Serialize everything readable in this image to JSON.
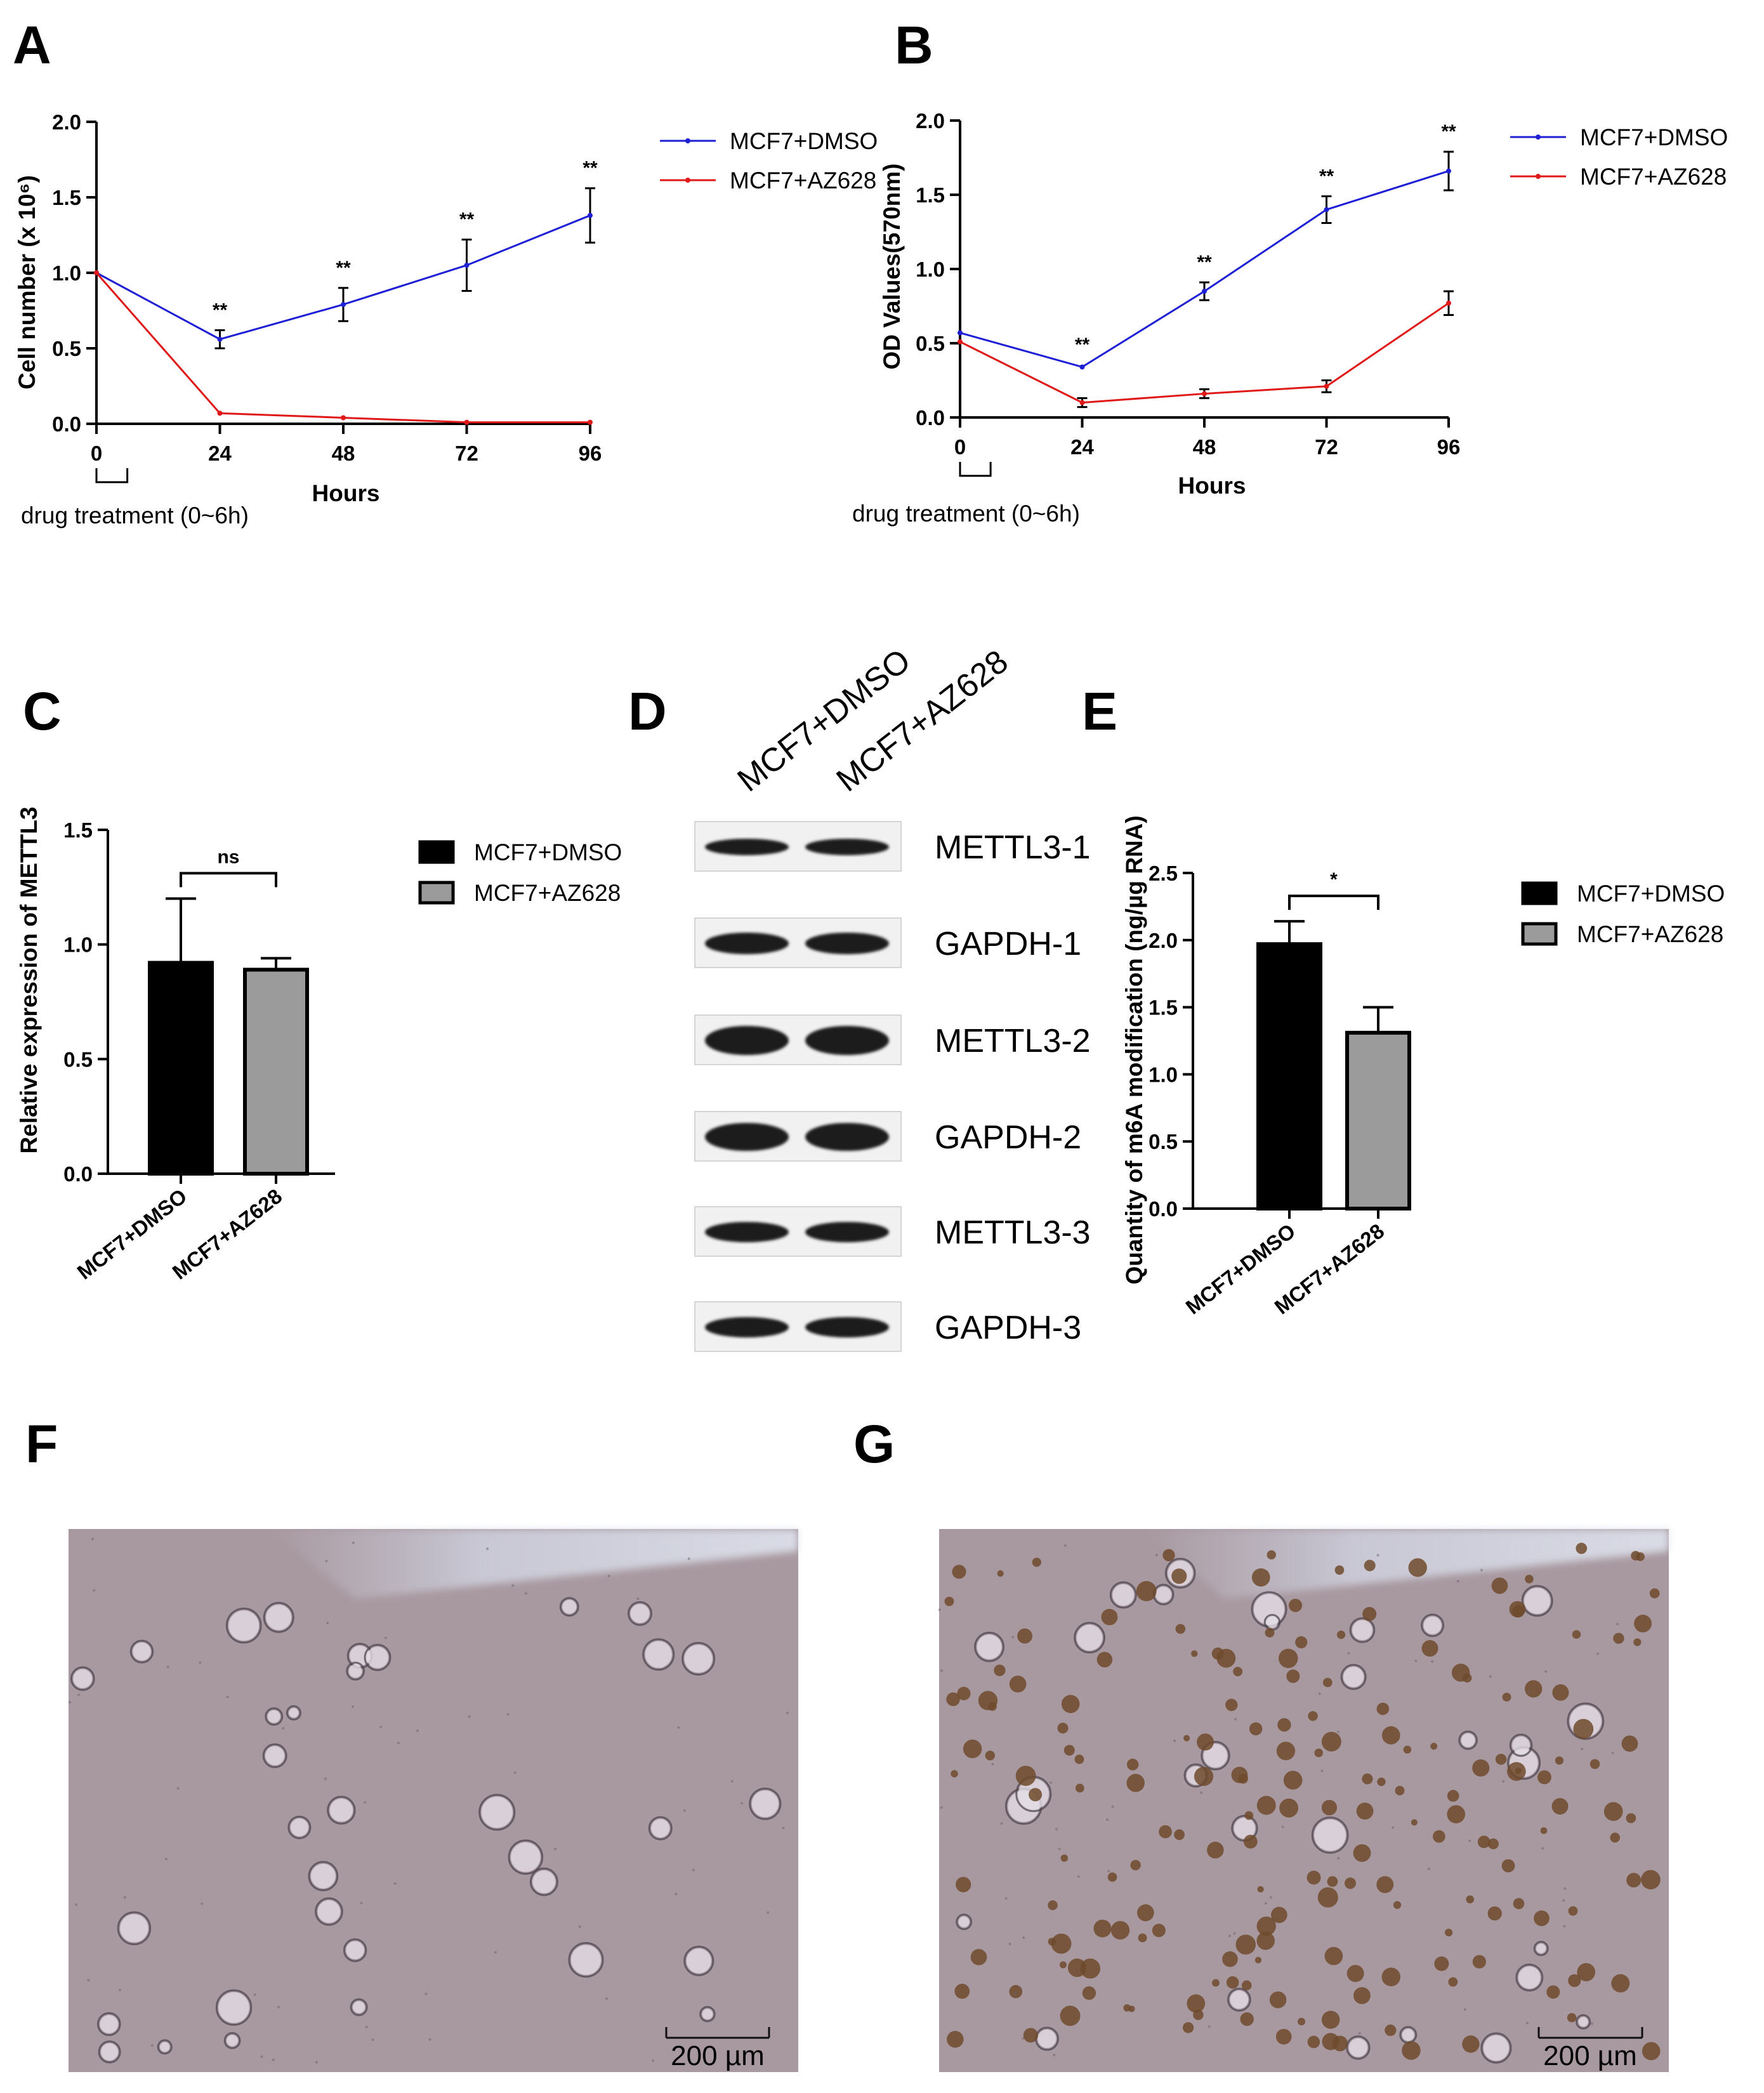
{
  "panels": {
    "A": "A",
    "B": "B",
    "C": "C",
    "D": "D",
    "E": "E",
    "F": "F",
    "G": "G"
  },
  "colors": {
    "dmso_line": "#1f1fd6",
    "az628_line": "#e01818",
    "dmso_bar": "#000000",
    "az628_bar": "#9b9b9b",
    "micrograph_bg": "#a8989f"
  },
  "drug_treatment_label": "drug treatment (0~6h)",
  "chart_data": [
    {
      "id": "A",
      "type": "line",
      "xlabel": "Hours",
      "ylabel": "Cell number (x 10⁶)",
      "x": [
        0,
        24,
        48,
        72,
        96
      ],
      "xticks": [
        "0",
        "24",
        "48",
        "72",
        "96"
      ],
      "yticks": [
        "0.0",
        "0.5",
        "1.0",
        "1.5",
        "2.0"
      ],
      "ylim": [
        0,
        2.0
      ],
      "legend_position": "top-right",
      "series": [
        {
          "name": "MCF7+DMSO",
          "color": "#1f1fd6",
          "values": [
            1.0,
            0.56,
            0.79,
            1.05,
            1.38
          ],
          "errors": [
            0,
            0.06,
            0.11,
            0.17,
            0.18
          ]
        },
        {
          "name": "MCF7+AZ628",
          "color": "#e01818",
          "values": [
            1.0,
            0.07,
            0.04,
            0.01,
            0.01
          ],
          "errors": [
            0,
            0.015,
            0.01,
            0.005,
            0.005
          ]
        }
      ],
      "significance": [
        {
          "x": 24,
          "label": "**"
        },
        {
          "x": 48,
          "label": "**"
        },
        {
          "x": 72,
          "label": "**"
        },
        {
          "x": 96,
          "label": "**"
        }
      ]
    },
    {
      "id": "B",
      "type": "line",
      "xlabel": "Hours",
      "ylabel": "OD Values(570nm)",
      "x": [
        0,
        24,
        48,
        72,
        96
      ],
      "xticks": [
        "0",
        "24",
        "48",
        "72",
        "96"
      ],
      "yticks": [
        "0.0",
        "0.5",
        "1.0",
        "1.5",
        "2.0"
      ],
      "ylim": [
        0,
        2.0
      ],
      "legend_position": "top-right",
      "series": [
        {
          "name": "MCF7+DMSO",
          "color": "#1f1fd6",
          "values": [
            0.57,
            0.34,
            0.85,
            1.4,
            1.66
          ],
          "errors": [
            0,
            0.015,
            0.06,
            0.09,
            0.13
          ]
        },
        {
          "name": "MCF7+AZ628",
          "color": "#e01818",
          "values": [
            0.51,
            0.1,
            0.16,
            0.21,
            0.77
          ],
          "errors": [
            0,
            0.03,
            0.03,
            0.04,
            0.08
          ]
        }
      ],
      "significance": [
        {
          "x": 24,
          "label": "**"
        },
        {
          "x": 48,
          "label": "**"
        },
        {
          "x": 72,
          "label": "**"
        },
        {
          "x": 96,
          "label": "**"
        }
      ]
    },
    {
      "id": "C",
      "type": "bar",
      "ylabel": "Relative expression of METTL3",
      "categories": [
        "MCF7+DMSO",
        "MCF7+AZ628"
      ],
      "values": [
        0.92,
        0.89
      ],
      "errors": [
        0.28,
        0.05
      ],
      "colors": [
        "#000000",
        "#9b9b9b"
      ],
      "yticks": [
        "0.0",
        "0.5",
        "1.0",
        "1.5"
      ],
      "ylim": [
        0,
        1.5
      ],
      "significance": "ns",
      "legend": [
        "MCF7+DMSO",
        "MCF7+AZ628"
      ],
      "legend_position": "right"
    },
    {
      "id": "E",
      "type": "bar",
      "ylabel": "Quantity of m6A modification (ng/µg RNA)",
      "categories": [
        "MCF7+DMSO",
        "MCF7+AZ628"
      ],
      "values": [
        1.97,
        1.31
      ],
      "errors": [
        0.17,
        0.19
      ],
      "colors": [
        "#000000",
        "#9b9b9b"
      ],
      "yticks": [
        "0.0",
        "0.5",
        "1.0",
        "1.5",
        "2.0",
        "2.5"
      ],
      "ylim": [
        0,
        2.5
      ],
      "significance": "*",
      "legend": [
        "MCF7+DMSO",
        "MCF7+AZ628"
      ],
      "legend_position": "right"
    }
  ],
  "blot": {
    "lanes": [
      "MCF7+DMSO",
      "MCF7+AZ628"
    ],
    "rows": [
      "METTL3-1",
      "GAPDH-1",
      "METTL3-2",
      "GAPDH-2",
      "METTL3-3",
      "GAPDH-3"
    ]
  },
  "micrographs": {
    "F": {
      "scale_label": "200 µm"
    },
    "G": {
      "scale_label": "200 µm"
    }
  }
}
